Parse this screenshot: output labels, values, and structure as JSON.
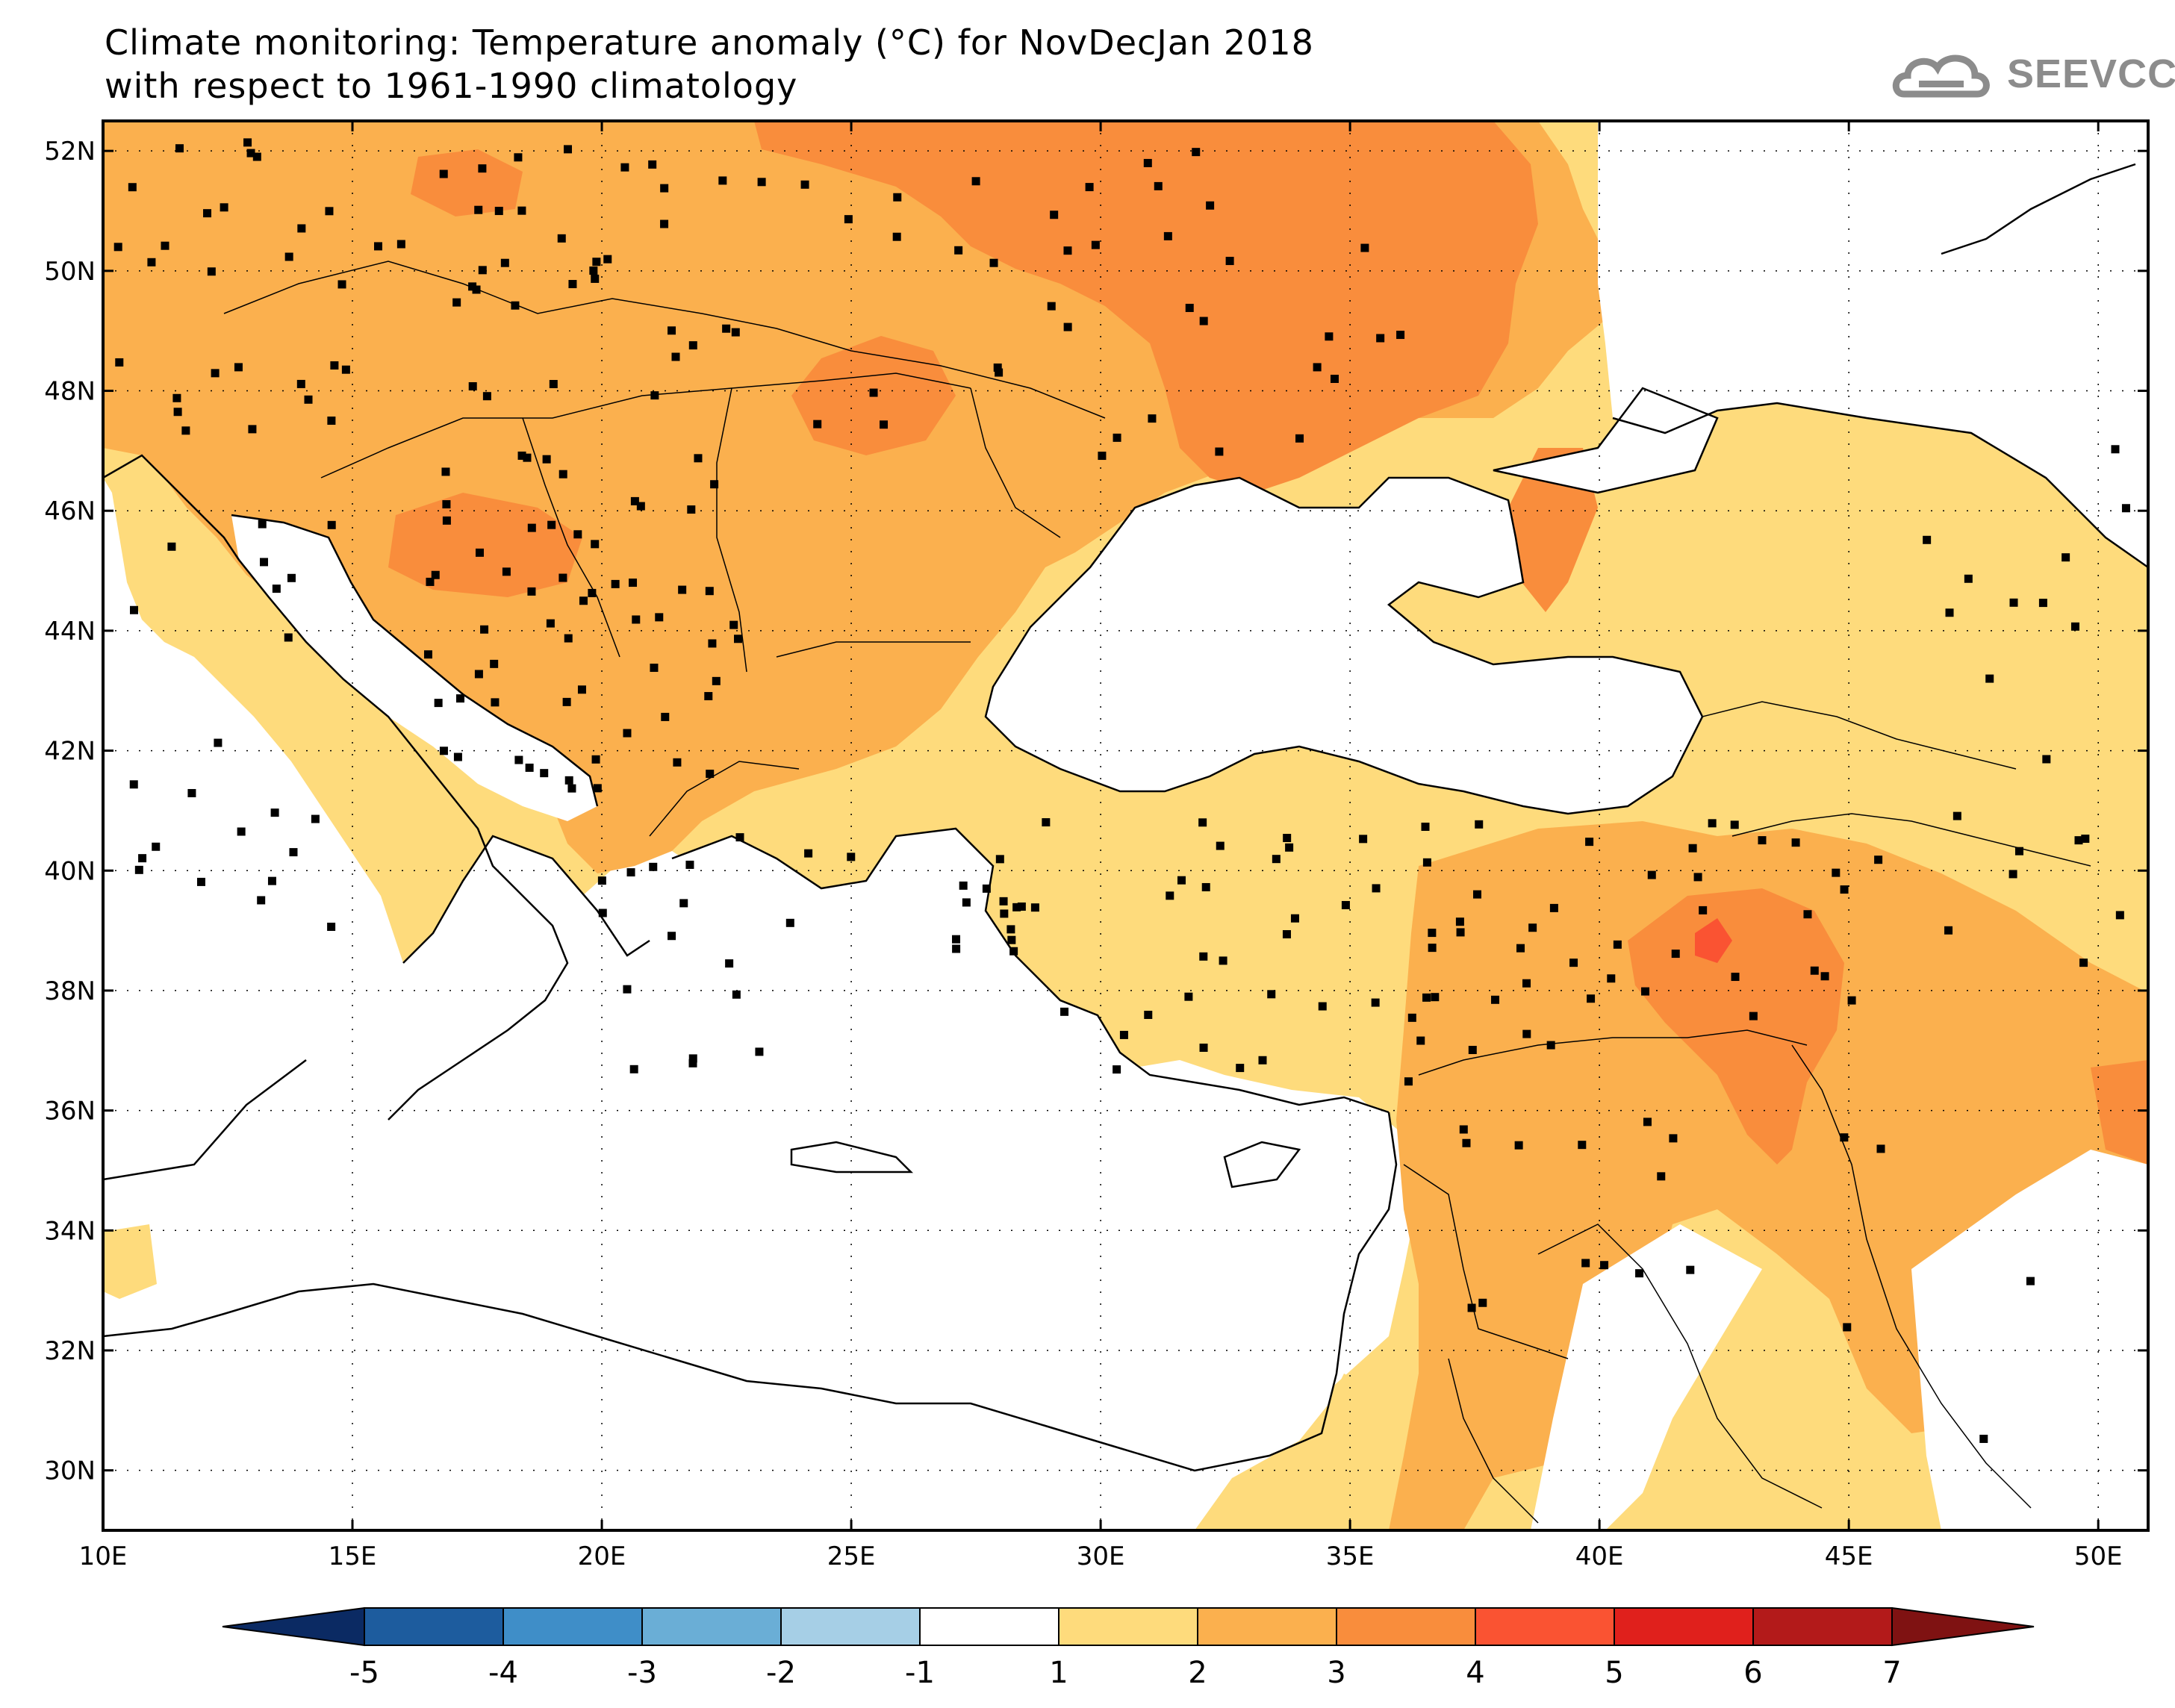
{
  "header": {
    "title_line1": "Climate monitoring: Temperature anomaly (°C) for NovDecJan 2018",
    "title_line2": "with respect to 1961-1990 climatology",
    "logo_text": "SEEVCCC",
    "logo_icon": "cloud-icon"
  },
  "map": {
    "lon_range": [
      10,
      51
    ],
    "lat_range": [
      29,
      52.5
    ],
    "lon_ticks": [
      {
        "value": 10,
        "label": "10E"
      },
      {
        "value": 15,
        "label": "15E"
      },
      {
        "value": 20,
        "label": "20E"
      },
      {
        "value": 25,
        "label": "25E"
      },
      {
        "value": 30,
        "label": "30E"
      },
      {
        "value": 35,
        "label": "35E"
      },
      {
        "value": 40,
        "label": "40E"
      },
      {
        "value": 45,
        "label": "45E"
      },
      {
        "value": 50,
        "label": "50E"
      }
    ],
    "lat_ticks": [
      {
        "value": 30,
        "label": "30N"
      },
      {
        "value": 32,
        "label": "32N"
      },
      {
        "value": 34,
        "label": "34N"
      },
      {
        "value": 36,
        "label": "36N"
      },
      {
        "value": 38,
        "label": "38N"
      },
      {
        "value": 40,
        "label": "40N"
      },
      {
        "value": 42,
        "label": "42N"
      },
      {
        "value": 44,
        "label": "44N"
      },
      {
        "value": 46,
        "label": "46N"
      },
      {
        "value": 48,
        "label": "48N"
      },
      {
        "value": 50,
        "label": "50N"
      },
      {
        "value": 52,
        "label": "52N"
      }
    ],
    "gridlines": "dotted",
    "station_marker_color": "#000000"
  },
  "colorbar": {
    "labels": [
      "-5",
      "-4",
      "-3",
      "-2",
      "-1",
      "1",
      "2",
      "3",
      "4",
      "5",
      "6",
      "7"
    ],
    "low_cap_color": "#0b2a63",
    "high_cap_color": "#7f1212",
    "colors": [
      "#1d5c9e",
      "#3f8ec8",
      "#6aaed6",
      "#a6cfe6",
      "#ffffff",
      "#fedb7c",
      "#fbb04e",
      "#f98d3c",
      "#fa5332",
      "#e0201c",
      "#b31a1a"
    ]
  }
}
